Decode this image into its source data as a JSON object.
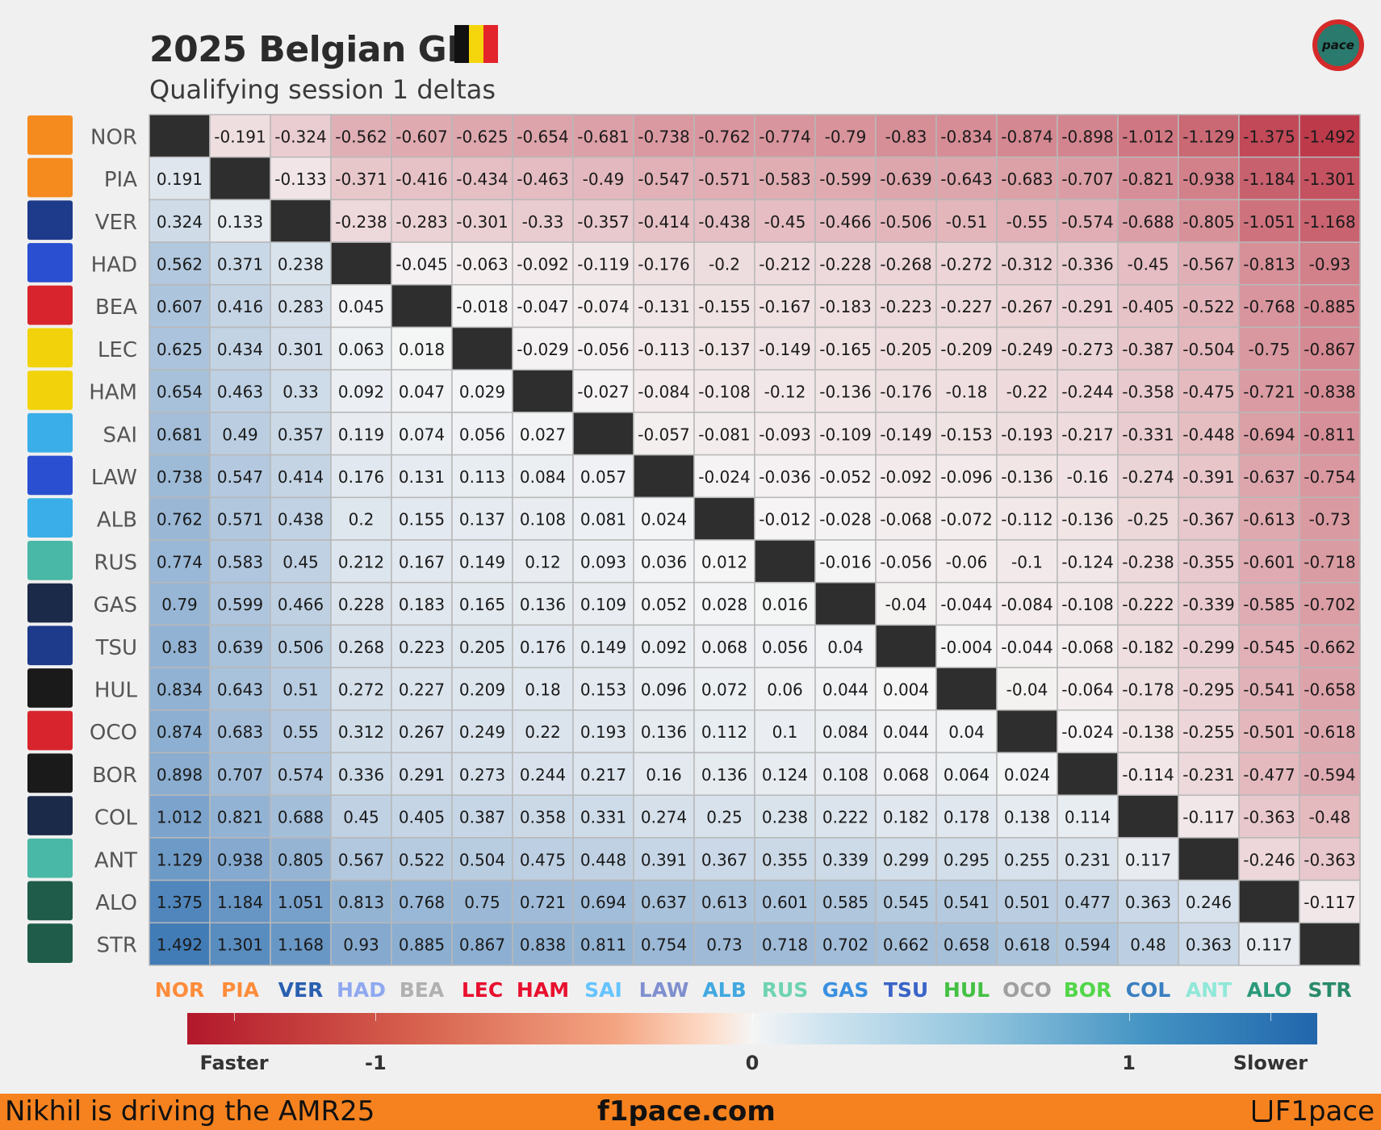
{
  "title": "2025 Belgian GP",
  "subtitle": "Qualifying session 1 deltas",
  "flag_colors": [
    "#111111",
    "#f5d60c",
    "#e3242b"
  ],
  "logo_text": "pace",
  "chart_data": {
    "type": "heatmap",
    "title": "2025 Belgian GP",
    "subtitle": "Qualifying session 1 deltas",
    "drivers": [
      "NOR",
      "PIA",
      "VER",
      "HAD",
      "BEA",
      "LEC",
      "HAM",
      "SAI",
      "LAW",
      "ALB",
      "RUS",
      "GAS",
      "TSU",
      "HUL",
      "OCO",
      "BOR",
      "COL",
      "ANT",
      "ALO",
      "STR"
    ],
    "driver_colors": [
      "#ff8c3a",
      "#ff8c3a",
      "#2a5fb0",
      "#8fa8f0",
      "#b0b0b0",
      "#e8102e",
      "#e8102e",
      "#64c4ff",
      "#7f8fcf",
      "#41a8e0",
      "#6fd3b0",
      "#3a8fe0",
      "#3a64c8",
      "#43c043",
      "#a0a0a0",
      "#52d64a",
      "#3a7fc0",
      "#8fe8d8",
      "#2a9a7a",
      "#2a8a6a"
    ],
    "team_icons": [
      "mclaren-icon",
      "mclaren-icon",
      "red-bull-icon",
      "racing-bulls-icon",
      "haas-icon",
      "ferrari-icon",
      "ferrari-icon",
      "williams-icon",
      "racing-bulls-icon",
      "williams-icon",
      "mercedes-icon",
      "alpine-icon",
      "red-bull-icon",
      "sauber-icon",
      "haas-icon",
      "sauber-icon",
      "alpine-icon",
      "mercedes-icon",
      "aston-martin-icon",
      "aston-martin-icon"
    ],
    "gap_to_nor": [
      0,
      0.191,
      0.324,
      0.562,
      0.607,
      0.625,
      0.654,
      0.681,
      0.738,
      0.762,
      0.774,
      0.79,
      0.83,
      0.834,
      0.874,
      0.898,
      1.012,
      1.129,
      1.375,
      1.492
    ],
    "cell_rule": "value[row][col] = gap_to_nor[row] - gap_to_nor[col]; diagonal blank",
    "colorbar": {
      "range": [
        -1.5,
        1.5
      ],
      "ticks": [
        -1.5,
        -1,
        0,
        1,
        1.5
      ],
      "tick_labels": [
        "Faster",
        "-1",
        "0",
        "1",
        "Slower"
      ]
    }
  },
  "footer": {
    "left": "Nikhil is driving the AMR25",
    "center": "f1pace.com",
    "right": "F1pace"
  }
}
